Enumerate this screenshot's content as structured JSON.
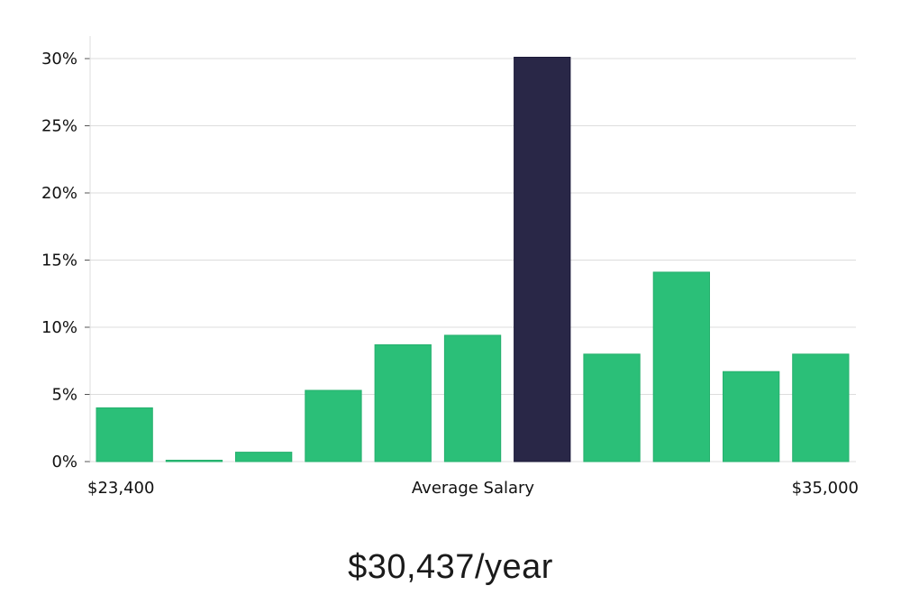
{
  "chart_data": {
    "type": "bar",
    "values": [
      4.0,
      0.1,
      0.7,
      5.3,
      8.7,
      9.4,
      30.1,
      8.0,
      14.1,
      6.7,
      8.0
    ],
    "highlight_index": 6,
    "ylim": [
      0,
      30
    ],
    "yticks": [
      "0%",
      "5%",
      "10%",
      "15%",
      "20%",
      "25%",
      "30%"
    ],
    "ytick_values": [
      0,
      5,
      10,
      15,
      20,
      25,
      30
    ],
    "x_min_label": "$23,400",
    "x_center_label": "Average Salary",
    "x_max_label": "$35,000",
    "grid": true,
    "colors": {
      "bar": "#2bbf78",
      "bar_highlight": "#292747",
      "grid": "#dddddd"
    }
  },
  "headline": "$30,437/year"
}
